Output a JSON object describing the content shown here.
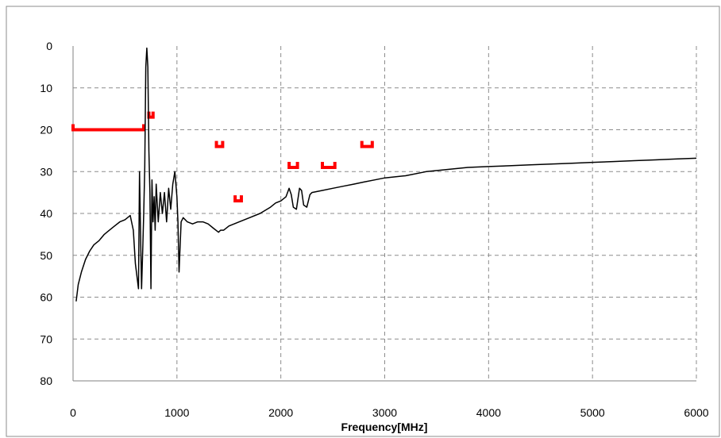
{
  "chart_data": {
    "type": "line",
    "title": "",
    "xlabel": "Frequency[MHz]",
    "ylabel": "",
    "xlim": [
      0,
      6000
    ],
    "ylim": [
      0,
      80
    ],
    "y_inverted": true,
    "grid": true,
    "legend": "none",
    "x_ticks": [
      "0",
      "1000",
      "2000",
      "3000",
      "4000",
      "5000",
      "6000"
    ],
    "y_ticks": [
      "0",
      "10",
      "20",
      "30",
      "40",
      "50",
      "60",
      "70",
      "80"
    ],
    "series": [
      {
        "color": "#000000",
        "x": [
          30,
          50,
          80,
          120,
          160,
          200,
          250,
          300,
          350,
          400,
          450,
          500,
          550,
          580,
          600,
          620,
          630,
          640,
          650,
          660,
          670,
          680,
          690,
          700,
          710,
          720,
          730,
          740,
          750,
          760,
          770,
          780,
          790,
          800,
          820,
          840,
          860,
          880,
          900,
          920,
          940,
          960,
          980,
          1000,
          1010,
          1020,
          1040,
          1060,
          1100,
          1150,
          1200,
          1250,
          1300,
          1350,
          1400,
          1420,
          1450,
          1500,
          1550,
          1600,
          1700,
          1800,
          1900,
          1950,
          2000,
          2050,
          2080,
          2100,
          2120,
          2150,
          2180,
          2200,
          2220,
          2250,
          2280,
          2300,
          2400,
          2500,
          2600,
          2700,
          2800,
          2900,
          3000,
          3200,
          3400,
          3600,
          3800,
          4000,
          4200,
          4400,
          4600,
          4800,
          5000,
          5200,
          5400,
          5600,
          5800,
          6000
        ],
        "y": [
          61,
          57,
          54,
          51,
          49,
          47.5,
          46.5,
          45,
          44,
          43,
          42,
          41.5,
          40.5,
          44,
          52,
          56,
          58,
          30,
          45,
          58,
          49,
          40,
          29,
          5,
          0.5,
          5,
          25,
          35,
          58,
          32,
          42,
          36,
          44,
          33,
          42,
          35,
          40,
          35,
          42,
          34,
          39,
          33,
          30,
          36,
          42,
          54,
          42,
          41,
          42,
          42.5,
          42,
          42,
          42.5,
          43.5,
          44.5,
          44,
          44,
          43,
          42.5,
          42,
          41,
          40,
          38.5,
          37.5,
          37,
          36,
          34,
          35.5,
          38.5,
          39,
          34,
          34.5,
          38,
          38.5,
          35.5,
          35,
          34.5,
          34,
          33.5,
          33,
          32.5,
          32,
          31.5,
          31,
          30,
          29.5,
          29,
          28.8,
          28.6,
          28.4,
          28.2,
          28.0,
          27.8,
          27.6,
          27.4,
          27.2,
          27.0,
          26.8
        ]
      }
    ],
    "limit_segments": [
      {
        "color": "#ff0000",
        "x": [
          0,
          680
        ],
        "y": 20
      },
      {
        "color": "#ff0000",
        "x": [
          730,
          770
        ],
        "y": 17
      },
      {
        "color": "#ff0000",
        "x": [
          1380,
          1440
        ],
        "y": 24
      },
      {
        "color": "#ff0000",
        "x": [
          1560,
          1620
        ],
        "y": 37
      },
      {
        "color": "#ff0000",
        "x": [
          2080,
          2160
        ],
        "y": 29
      },
      {
        "color": "#ff0000",
        "x": [
          2400,
          2520
        ],
        "y": 29
      },
      {
        "color": "#ff0000",
        "x": [
          2780,
          2880
        ],
        "y": 24
      }
    ]
  }
}
